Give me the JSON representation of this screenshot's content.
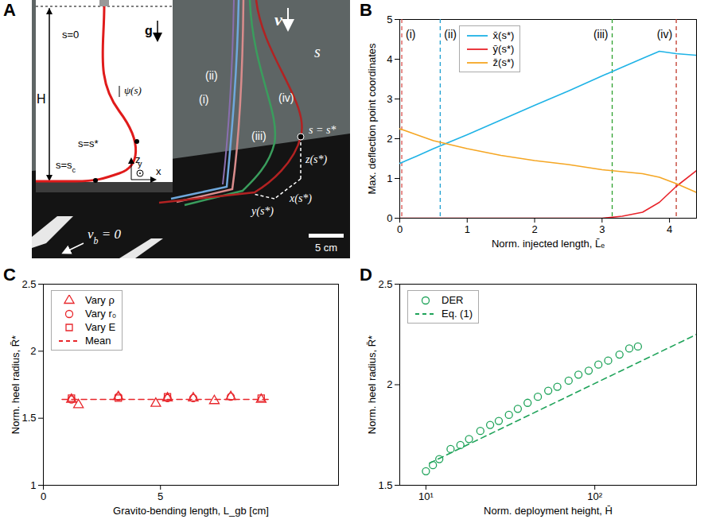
{
  "panel_a": {
    "panel": "A",
    "inset": {
      "H": "H",
      "s0": "s=0",
      "g": "g",
      "psi": "ψ(s)",
      "sstar": "s=s*",
      "sc": [
        {
          "t": "s=s"
        },
        {
          "t": "c",
          "sub": true
        }
      ],
      "z": "z",
      "y": "y",
      "x": "x"
    },
    "photo": {
      "v": "v",
      "s": "s",
      "strands": [
        "(i)",
        "(ii)",
        "(iii)",
        "(iv)"
      ],
      "sstar": "s = s*",
      "zs": "z(s*)",
      "xs": "x(s*)",
      "ys": "y(s*)",
      "vb": [
        {
          "t": "v"
        },
        {
          "t": "b",
          "sub": true
        },
        {
          "t": " = 0"
        }
      ],
      "scale": "5 cm"
    }
  },
  "chart_data": [
    {
      "panel": "B",
      "type": "line",
      "x_label": "Norm. injected length, L̄ₑ",
      "y_label": "Max. deflection point coordinates",
      "x": [
        0,
        0.25,
        0.5,
        1,
        1.5,
        2,
        2.5,
        3,
        3.3,
        3.6,
        3.85,
        4.1,
        4.4
      ],
      "series": [
        {
          "name": "x̄(s*)",
          "color": "#1fb3e6",
          "values": [
            1.38,
            1.56,
            1.75,
            2.1,
            2.47,
            2.84,
            3.2,
            3.58,
            3.8,
            4.02,
            4.2,
            4.14,
            4.1
          ]
        },
        {
          "name": "ȳ(s*)",
          "color": "#e8232a",
          "values": [
            0,
            0,
            0,
            0,
            0,
            0,
            0,
            0,
            0.05,
            0.15,
            0.4,
            0.8,
            1.2
          ]
        },
        {
          "name": "z̄(s*)",
          "color": "#f5a623",
          "values": [
            2.25,
            2.1,
            1.95,
            1.75,
            1.58,
            1.45,
            1.35,
            1.22,
            1.17,
            1.12,
            1.03,
            0.87,
            0.65
          ]
        }
      ],
      "annotations": [
        {
          "label": "(i)",
          "x": 0.03,
          "color": "#d9534f",
          "line_style": "dashed"
        },
        {
          "label": "(ii)",
          "x": 0.6,
          "color": "#1f9fd0",
          "line_style": "dashed"
        },
        {
          "label": "(iii)",
          "x": 3.15,
          "color": "#2ca02c",
          "line_style": "dashed"
        },
        {
          "label": "(iv)",
          "x": 4.1,
          "color": "#c0392b",
          "line_style": "dashed"
        }
      ],
      "xlim": [
        0,
        4.4
      ],
      "xticks": [
        0,
        1,
        2,
        3,
        4
      ],
      "ylim": [
        0,
        5
      ],
      "yticks": [
        0,
        1,
        2,
        3,
        4,
        5
      ],
      "legend": "top"
    },
    {
      "panel": "C",
      "type": "scatter",
      "x_label": "Gravito-bending length, L_gb [cm]",
      "y_label": "Norm. heel radius, R̄*",
      "series": [
        {
          "name": "Vary ρ",
          "color": "#e8262b",
          "marker": "triangle",
          "x": [
            1.2,
            1.5,
            3.2,
            4.8,
            5.3,
            6.4,
            7.3,
            8.0,
            9.3
          ],
          "values": [
            1.64,
            1.6,
            1.66,
            1.61,
            1.65,
            1.65,
            1.63,
            1.66,
            1.64
          ]
        },
        {
          "name": "Vary r₀",
          "color": "#e8262b",
          "marker": "circle",
          "x": [
            1.2,
            3.2,
            5.3,
            6.4,
            8.0
          ],
          "values": [
            1.64,
            1.66,
            1.65,
            1.65,
            1.66
          ]
        },
        {
          "name": "Vary E",
          "color": "#e8262b",
          "marker": "square",
          "x": [
            1.2,
            3.2,
            5.3,
            9.3
          ],
          "values": [
            1.65,
            1.65,
            1.66,
            1.65
          ]
        },
        {
          "name": "Mean",
          "color": "#e8262b",
          "type": "line",
          "line_style": "dashed",
          "x": [
            0.8,
            9.6
          ],
          "values": [
            1.64,
            1.64
          ]
        }
      ],
      "xlim": [
        0,
        12.6
      ],
      "xticks": [
        0,
        5
      ],
      "ylim": [
        1,
        2.5
      ],
      "yticks": [
        1,
        1.5,
        2,
        2.5
      ],
      "legend": "top-left"
    },
    {
      "panel": "D",
      "type": "scatter",
      "log": "x",
      "x_label": "Norm. deployment height, H̄",
      "y_label": "Norm. heel radius, R̄*",
      "series": [
        {
          "name": "DER",
          "color": "#1fa35a",
          "marker": "circle",
          "x": [
            10,
            11,
            12,
            14,
            16,
            18,
            21,
            24,
            27,
            31,
            35,
            40,
            46,
            53,
            60,
            70,
            80,
            92,
            105,
            120,
            140,
            160,
            180
          ],
          "values": [
            1.57,
            1.6,
            1.63,
            1.68,
            1.7,
            1.73,
            1.77,
            1.8,
            1.82,
            1.85,
            1.88,
            1.91,
            1.94,
            1.97,
            1.99,
            2.02,
            2.05,
            2.07,
            2.1,
            2.12,
            2.15,
            2.18,
            2.19
          ]
        },
        {
          "name": "Eq. (1)",
          "color": "#1fa35a",
          "type": "line",
          "line_style": "dashed",
          "x": [
            10.5,
            400
          ],
          "values": [
            1.61,
            2.25
          ]
        }
      ],
      "xlim": [
        7,
        400
      ],
      "xticks": [
        {
          "value": 10,
          "label": "10¹"
        },
        {
          "value": 100,
          "label": "10²"
        }
      ],
      "ylim": [
        1.5,
        2.5
      ],
      "yticks": [
        1.5,
        2,
        2.5
      ],
      "legend": "top-left"
    }
  ]
}
